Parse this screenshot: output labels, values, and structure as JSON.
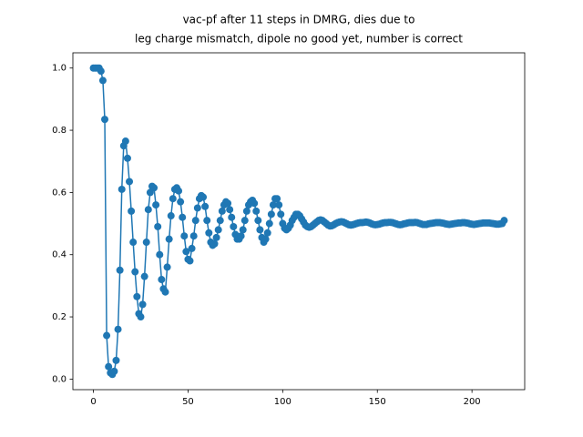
{
  "chart_data": {
    "type": "line",
    "title": [
      "vac-pf after 11 steps in DMRG, dies due to",
      "leg charge mismatch, dipole no good yet, number is correct"
    ],
    "color": "#1f77b4",
    "markers": true,
    "grid": false,
    "xlim": [
      -10.85,
      227.85
    ],
    "xticks": [
      0,
      50,
      100,
      150,
      200
    ],
    "ylim": [
      -0.034,
      1.049
    ],
    "yticks": [
      {
        "value": 0,
        "label": "0.0"
      },
      0.2,
      0.4,
      0.6,
      0.8,
      {
        "value": 1,
        "label": "1.0"
      }
    ],
    "x": [
      0,
      1,
      2,
      3,
      4,
      5,
      6,
      7,
      8,
      9,
      10,
      11,
      12,
      13,
      14,
      15,
      16,
      17,
      18,
      19,
      20,
      21,
      22,
      23,
      24,
      25,
      26,
      27,
      28,
      29,
      30,
      31,
      32,
      33,
      34,
      35,
      36,
      37,
      38,
      39,
      40,
      41,
      42,
      43,
      44,
      45,
      46,
      47,
      48,
      49,
      50,
      51,
      52,
      53,
      54,
      55,
      56,
      57,
      58,
      59,
      60,
      61,
      62,
      63,
      64,
      65,
      66,
      67,
      68,
      69,
      70,
      71,
      72,
      73,
      74,
      75,
      76,
      77,
      78,
      79,
      80,
      81,
      82,
      83,
      84,
      85,
      86,
      87,
      88,
      89,
      90,
      91,
      92,
      93,
      94,
      95,
      96,
      97,
      98,
      99,
      100,
      101,
      102,
      103,
      104,
      105,
      106,
      107,
      108,
      109,
      110,
      111,
      112,
      113,
      114,
      115,
      116,
      117,
      118,
      119,
      120,
      121,
      122,
      123,
      124,
      125,
      126,
      127,
      128,
      129,
      130,
      131,
      132,
      133,
      134,
      135,
      136,
      137,
      138,
      139,
      140,
      141,
      142,
      143,
      144,
      145,
      146,
      147,
      148,
      149,
      150,
      151,
      152,
      153,
      154,
      155,
      156,
      157,
      158,
      159,
      160,
      161,
      162,
      163,
      164,
      165,
      166,
      167,
      168,
      169,
      170,
      171,
      172,
      173,
      174,
      175,
      176,
      177,
      178,
      179,
      180,
      181,
      182,
      183,
      184,
      185,
      186,
      187,
      188,
      189,
      190,
      191,
      192,
      193,
      194,
      195,
      196,
      197,
      198,
      199,
      200,
      201,
      202,
      203,
      204,
      205,
      206,
      207,
      208,
      209,
      210,
      211,
      212,
      213,
      214,
      215,
      216,
      217
    ],
    "values": [
      1,
      1,
      1,
      1,
      0.99,
      0.96,
      0.835,
      0.14,
      0.04,
      0.02,
      0.015,
      0.025,
      0.06,
      0.16,
      0.35,
      0.61,
      0.75,
      0.765,
      0.71,
      0.635,
      0.54,
      0.44,
      0.345,
      0.265,
      0.21,
      0.2,
      0.24,
      0.33,
      0.44,
      0.545,
      0.6,
      0.62,
      0.615,
      0.56,
      0.49,
      0.4,
      0.32,
      0.29,
      0.28,
      0.36,
      0.45,
      0.525,
      0.58,
      0.61,
      0.615,
      0.605,
      0.57,
      0.52,
      0.46,
      0.41,
      0.385,
      0.38,
      0.42,
      0.46,
      0.51,
      0.55,
      0.58,
      0.59,
      0.585,
      0.555,
      0.51,
      0.47,
      0.44,
      0.43,
      0.435,
      0.455,
      0.48,
      0.51,
      0.54,
      0.56,
      0.57,
      0.565,
      0.545,
      0.52,
      0.49,
      0.465,
      0.45,
      0.45,
      0.46,
      0.48,
      0.51,
      0.54,
      0.56,
      0.57,
      0.575,
      0.565,
      0.54,
      0.51,
      0.48,
      0.455,
      0.44,
      0.45,
      0.47,
      0.5,
      0.53,
      0.56,
      0.58,
      0.58,
      0.56,
      0.53,
      0.5,
      0.485,
      0.48,
      0.485,
      0.495,
      0.51,
      0.52,
      0.53,
      0.53,
      0.525,
      0.515,
      0.505,
      0.495,
      0.49,
      0.488,
      0.49,
      0.495,
      0.5,
      0.505,
      0.51,
      0.512,
      0.51,
      0.505,
      0.5,
      0.495,
      0.492,
      0.493,
      0.496,
      0.5,
      0.503,
      0.505,
      0.506,
      0.505,
      0.502,
      0.499,
      0.496,
      0.495,
      0.496,
      0.498,
      0.5,
      0.502,
      0.503,
      0.503,
      0.504,
      0.505,
      0.504,
      0.502,
      0.499,
      0.497,
      0.496,
      0.497,
      0.498,
      0.5,
      0.502,
      0.503,
      0.503,
      0.504,
      0.504,
      0.503,
      0.501,
      0.499,
      0.497,
      0.496,
      0.497,
      0.499,
      0.5,
      0.502,
      0.503,
      0.503,
      0.503,
      0.504,
      0.503,
      0.501,
      0.499,
      0.497,
      0.497,
      0.497,
      0.499,
      0.5,
      0.501,
      0.502,
      0.503,
      0.503,
      0.503,
      0.502,
      0.501,
      0.499,
      0.498,
      0.497,
      0.498,
      0.499,
      0.5,
      0.501,
      0.502,
      0.502,
      0.503,
      0.503,
      0.502,
      0.501,
      0.499,
      0.498,
      0.497,
      0.498,
      0.499,
      0.5,
      0.501,
      0.502,
      0.502,
      0.502,
      0.502,
      0.501,
      0.5,
      0.499,
      0.498,
      0.498,
      0.499,
      0.5,
      0.51
    ]
  }
}
